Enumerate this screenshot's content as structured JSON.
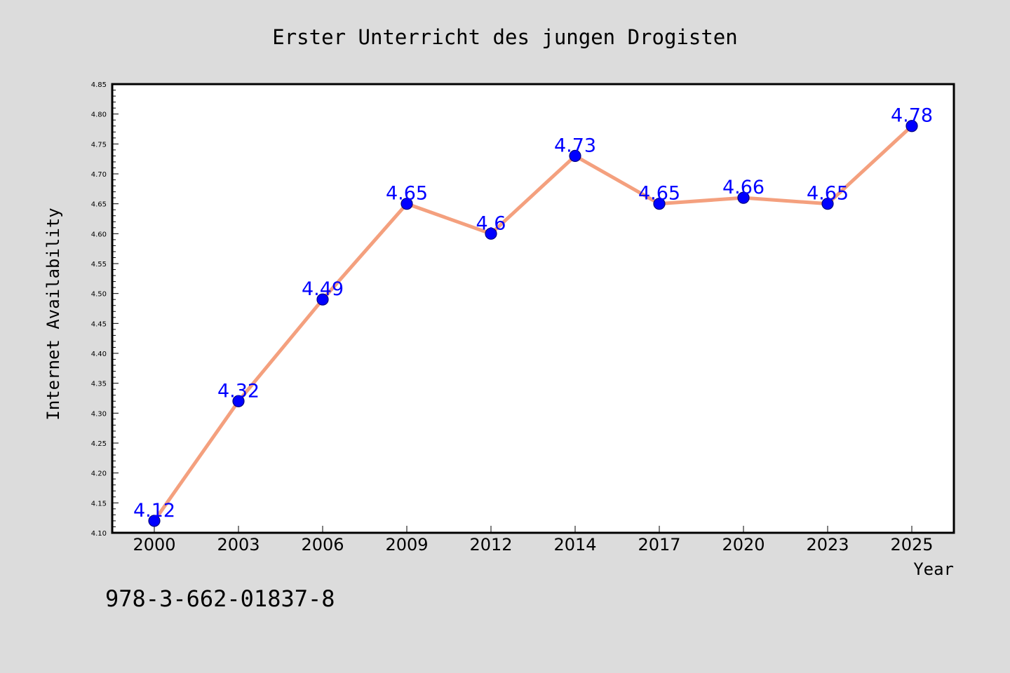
{
  "chart_data": {
    "type": "line",
    "title": "Erster Unterricht des jungen Drogisten",
    "xlabel": "Year",
    "ylabel": "Internet Availability",
    "categories": [
      "2000",
      "2003",
      "2006",
      "2009",
      "2012",
      "2014",
      "2017",
      "2020",
      "2023",
      "2025"
    ],
    "series": [
      {
        "values": [
          4.12,
          4.32,
          4.49,
          4.65,
          4.6,
          4.73,
          4.65,
          4.66,
          4.65,
          4.78
        ],
        "labels": [
          "4.12",
          "4.32",
          "4.49",
          "4.65",
          "4.6",
          "4.73",
          "4.65",
          "4.66",
          "4.65",
          "4.78"
        ]
      }
    ],
    "ylim": [
      4.1,
      4.85
    ],
    "yticks": [
      "4.10",
      "4.15",
      "4.20",
      "4.25",
      "4.30",
      "4.35",
      "4.40",
      "4.45",
      "4.50",
      "4.55",
      "4.60",
      "4.65",
      "4.70",
      "4.75",
      "4.80",
      "4.85"
    ],
    "grid": false,
    "colors": {
      "background": "#dcdcdc",
      "plot_area": "#ffffff",
      "line": "#f4a07e",
      "marker": "#0000ff",
      "data_label": "#0000ff"
    }
  },
  "footer": {
    "text": "978-3-662-01837-8"
  }
}
